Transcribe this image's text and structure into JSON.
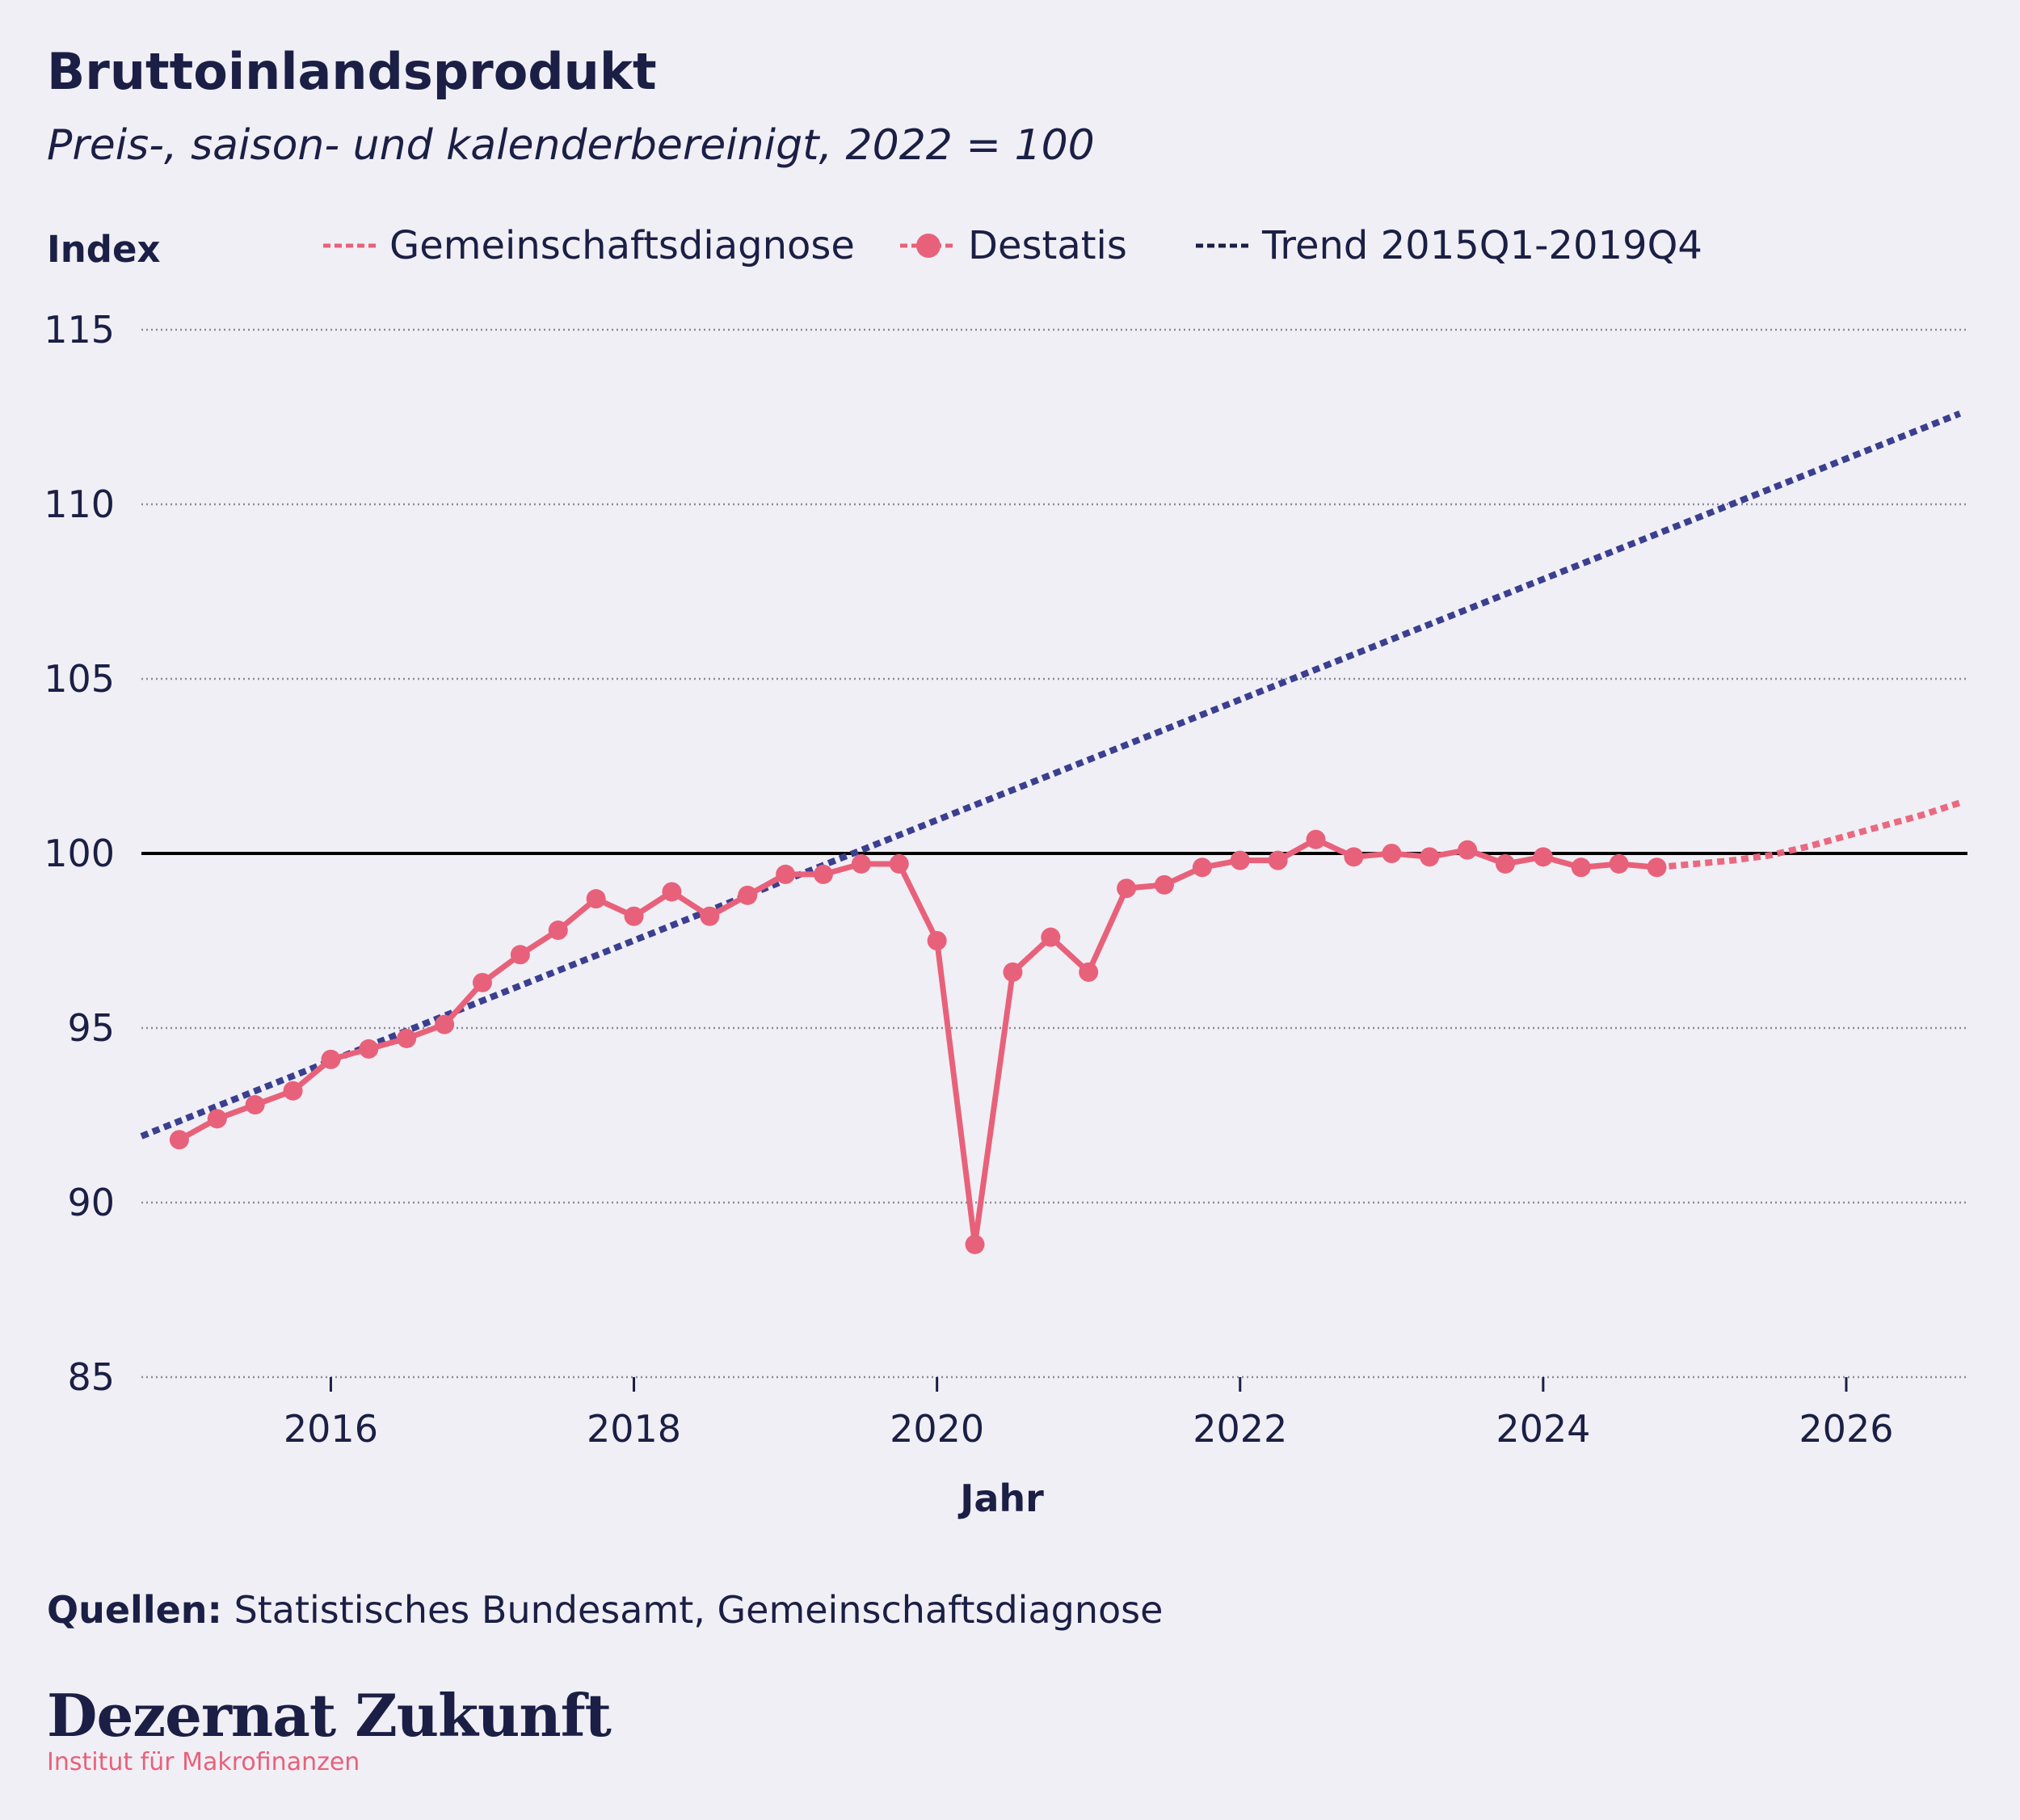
{
  "header": {
    "title": "Bruttoinlandsprodukt",
    "subtitle": "Preis-, saison- und kalenderbereinigt, 2022 = 100"
  },
  "legend": [
    {
      "label": "Gemeinschaftsdiagnose",
      "style": "dashed",
      "color": "#e8617a"
    },
    {
      "label": "Destatis",
      "style": "dashed-marker",
      "color": "#e8617a"
    },
    {
      "label": "Trend 2015Q1-2019Q4",
      "style": "dashed",
      "color": "#1b1f45"
    }
  ],
  "footer": {
    "source_label": "Quellen:",
    "source_text": "Statistisches Bundesamt, Gemeinschaftsdiagnose",
    "brand": "Dezernat Zukunft",
    "brand_sub": "Institut für Makrofinanzen"
  },
  "colors": {
    "destatis": "#e8617a",
    "trend": "#3a3f8f",
    "background": "#f0eff5",
    "text": "#1b1f45"
  },
  "chart_data": {
    "type": "line",
    "ylabel": "Index",
    "xlabel": "Jahr",
    "ylim": [
      85,
      115
    ],
    "xlim": [
      2014.75,
      2026.8
    ],
    "yticks": [
      85,
      90,
      95,
      100,
      105,
      110,
      115
    ],
    "xticks": [
      2016,
      2018,
      2020,
      2022,
      2024,
      2026
    ],
    "grid": "horizontal-dotted",
    "reference_line": 100,
    "legend_position": "top",
    "series": [
      {
        "name": "Destatis",
        "style": "solid-markers",
        "x": [
          "2015Q1",
          "2015Q2",
          "2015Q3",
          "2015Q4",
          "2016Q1",
          "2016Q2",
          "2016Q3",
          "2016Q4",
          "2017Q1",
          "2017Q2",
          "2017Q3",
          "2017Q4",
          "2018Q1",
          "2018Q2",
          "2018Q3",
          "2018Q4",
          "2019Q1",
          "2019Q2",
          "2019Q3",
          "2019Q4",
          "2020Q1",
          "2020Q2",
          "2020Q3",
          "2020Q4",
          "2021Q1",
          "2021Q2",
          "2021Q3",
          "2021Q4",
          "2022Q1",
          "2022Q2",
          "2022Q3",
          "2022Q4",
          "2023Q1",
          "2023Q2",
          "2023Q3",
          "2023Q4",
          "2024Q1",
          "2024Q2",
          "2024Q3",
          "2024Q4"
        ],
        "values": [
          91.8,
          92.4,
          92.8,
          93.2,
          94.1,
          94.4,
          94.7,
          95.1,
          96.3,
          97.1,
          97.8,
          98.7,
          98.2,
          98.9,
          98.2,
          98.8,
          99.4,
          99.4,
          99.7,
          99.7,
          97.5,
          88.8,
          96.6,
          97.6,
          96.6,
          99.0,
          99.1,
          99.6,
          99.8,
          99.8,
          100.4,
          99.9,
          100.0,
          99.9,
          100.1,
          99.7,
          99.9,
          99.6,
          99.7,
          99.6
        ]
      },
      {
        "name": "Gemeinschaftsdiagnose",
        "style": "dotted",
        "x": [
          "2024Q4",
          "2025Q1",
          "2025Q2",
          "2025Q3",
          "2025Q4",
          "2026Q1",
          "2026Q2",
          "2026Q3",
          "2026Q4"
        ],
        "values": [
          99.6,
          99.7,
          99.8,
          99.95,
          100.2,
          100.5,
          100.8,
          101.1,
          101.45
        ]
      },
      {
        "name": "Trend 2015Q1-2019Q4",
        "style": "dotted",
        "x": [
          "2014Q4",
          "2026Q4"
        ],
        "values": [
          91.9,
          112.6
        ]
      }
    ]
  }
}
